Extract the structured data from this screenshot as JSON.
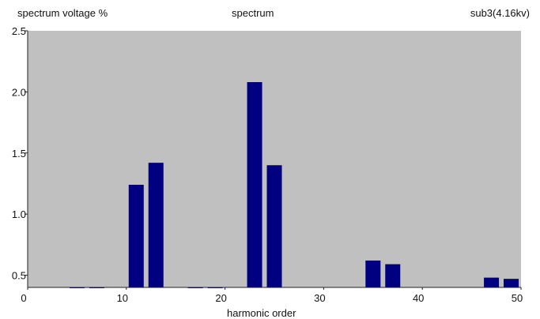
{
  "header": {
    "left": "spectrum voltage %",
    "center": "spectrum",
    "right": "sub3(4.16kv)"
  },
  "colors": {
    "plot_background": "#c0c0c0",
    "bar": "#000080"
  },
  "chart_data": {
    "type": "bar",
    "title": "spectrum",
    "xlabel": "harmonic order",
    "ylabel": "spectrum voltage %",
    "xlim": [
      0,
      50
    ],
    "ylim": [
      0.4,
      2.5
    ],
    "x_ticks": [
      0,
      10,
      20,
      30,
      40,
      50
    ],
    "y_ticks": [
      0.5,
      1.0,
      1.5,
      2.0,
      2.5
    ],
    "y_tick_labels": [
      "0.5",
      "1.0",
      "1.5",
      "2.0",
      "2.5"
    ],
    "grid": false,
    "legend": "none",
    "x": [
      5,
      7,
      11,
      13,
      17,
      19,
      23,
      25,
      35,
      37,
      47,
      49
    ],
    "values": [
      0.4,
      0.4,
      1.24,
      1.42,
      0.4,
      0.4,
      2.08,
      1.4,
      0.62,
      0.59,
      0.48,
      0.47
    ]
  }
}
